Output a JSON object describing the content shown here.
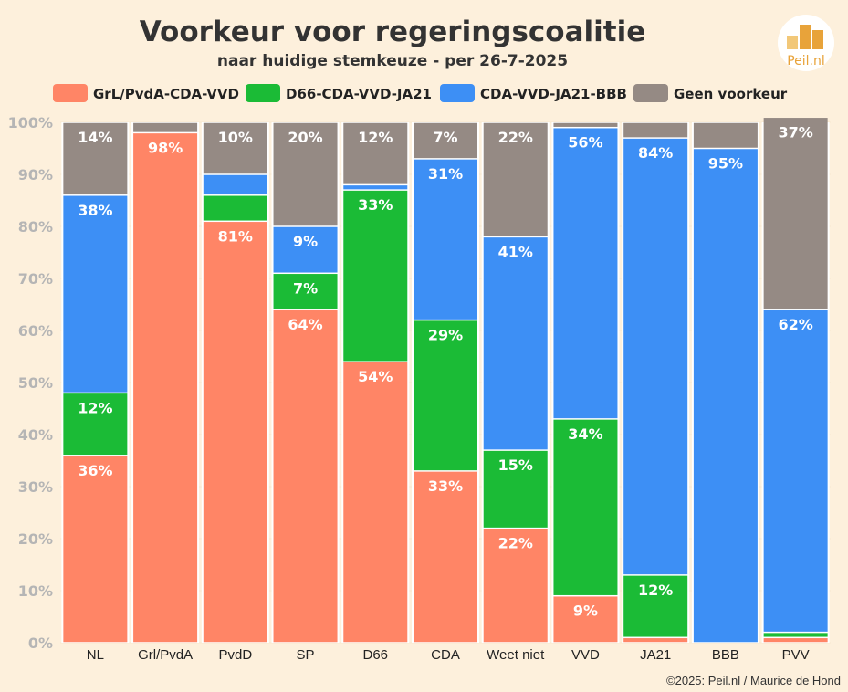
{
  "header": {
    "title": "Voorkeur voor regeringscoalitie",
    "subtitle": "naar huidige stemkeuze - per 26-7-2025"
  },
  "logo": {
    "text": "Peil.nl",
    "icon": "bar-chart-logo-icon",
    "color": "#e8a33a"
  },
  "footer": {
    "credit": "©2025: Peil.nl / Maurice de Hond"
  },
  "chart_data": {
    "type": "bar",
    "stacked": true,
    "categories": [
      "NL",
      "Grl/PvdA",
      "PvdD",
      "SP",
      "D66",
      "CDA",
      "Weet niet",
      "VVD",
      "JA21",
      "BBB",
      "PVV"
    ],
    "series": [
      {
        "name": "GrL/PvdA-CDA-VVD",
        "color": "#ff8566",
        "values": [
          36,
          98,
          81,
          64,
          54,
          33,
          22,
          9,
          1,
          0,
          1
        ],
        "labels": [
          "36%",
          "98%",
          "81%",
          "64%",
          "54%",
          "33%",
          "22%",
          "9%",
          "",
          "",
          ""
        ]
      },
      {
        "name": "D66-CDA-VVD-JA21",
        "color": "#1bbb36",
        "values": [
          12,
          0,
          5,
          7,
          33,
          29,
          15,
          34,
          12,
          0,
          1
        ],
        "labels": [
          "12%",
          "",
          "",
          "7%",
          "33%",
          "29%",
          "15%",
          "34%",
          "12%",
          "",
          ""
        ]
      },
      {
        "name": "CDA-VVD-JA21-BBB",
        "color": "#3d8ff5",
        "values": [
          38,
          0,
          4,
          9,
          1,
          31,
          41,
          56,
          84,
          95,
          62
        ],
        "labels": [
          "38%",
          "",
          "",
          "9%",
          "",
          "31%",
          "41%",
          "56%",
          "84%",
          "95%",
          "62%"
        ]
      },
      {
        "name": "Geen voorkeur",
        "color": "#958a84",
        "values": [
          14,
          2,
          10,
          20,
          12,
          7,
          22,
          1,
          3,
          5,
          37
        ],
        "labels": [
          "14%",
          "",
          "10%",
          "20%",
          "12%",
          "7%",
          "22%",
          "",
          "",
          "",
          "37%"
        ]
      }
    ],
    "yticks": [
      "0%",
      "10%",
      "20%",
      "30%",
      "40%",
      "50%",
      "60%",
      "70%",
      "80%",
      "90%",
      "100%"
    ],
    "ylim": [
      0,
      100
    ],
    "legend_position": "top",
    "grid": true
  }
}
